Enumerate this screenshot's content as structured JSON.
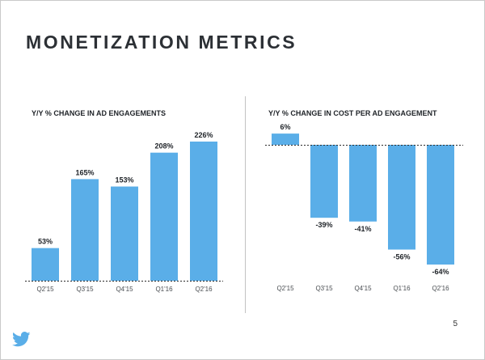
{
  "slide": {
    "title": "MONETIZATION METRICS",
    "page_number": "5",
    "logo_icon": "twitter-bird-icon",
    "accent_color": "#5aaee8"
  },
  "chart_data": [
    {
      "type": "bar",
      "title": "Y/Y % CHANGE IN AD ENGAGEMENTS",
      "categories": [
        "Q2'15",
        "Q3'15",
        "Q4'15",
        "Q1'16",
        "Q2'16"
      ],
      "values": [
        53,
        165,
        153,
        208,
        226
      ],
      "value_labels": [
        "53%",
        "165%",
        "153%",
        "208%",
        "226%"
      ],
      "xlabel": "",
      "ylabel": "",
      "ylim": [
        0,
        226
      ],
      "baseline": "dashed",
      "grid": false,
      "color": "#5aaee8"
    },
    {
      "type": "bar",
      "title": "Y/Y % CHANGE IN COST PER AD ENGAGEMENT",
      "categories": [
        "Q2'15",
        "Q3'15",
        "Q4'15",
        "Q1'16",
        "Q2'16"
      ],
      "values": [
        6,
        -39,
        -41,
        -56,
        -64
      ],
      "value_labels": [
        "6%",
        "-39%",
        "-41%",
        "-56%",
        "-64%"
      ],
      "xlabel": "",
      "ylabel": "",
      "ylim": [
        -64,
        6
      ],
      "baseline": "dashed",
      "grid": false,
      "color": "#5aaee8"
    }
  ]
}
